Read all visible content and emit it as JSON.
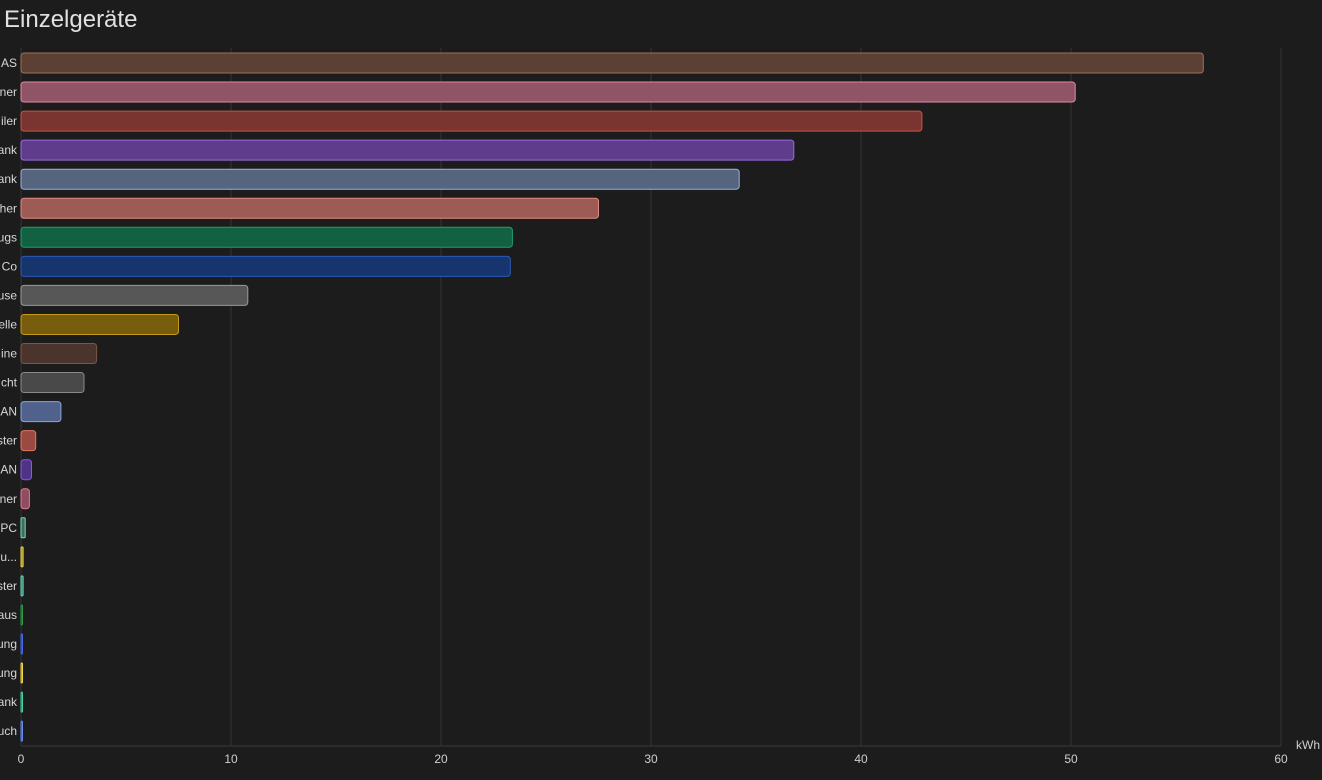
{
  "card": {
    "title": "Einzelgeräte"
  },
  "chart_data": {
    "type": "bar",
    "orientation": "horizontal",
    "title": "Einzelgeräte",
    "xunit": "kWh",
    "xlim": [
      0,
      60
    ],
    "xticks": [
      0,
      10,
      20,
      30,
      40,
      50,
      60
    ],
    "grid": true,
    "legend": "none",
    "categories": [
      "AS",
      "ner",
      "iler",
      "ank",
      "ank",
      "her",
      "ugs",
      "Co",
      "use",
      "elle",
      "ine",
      "cht",
      "AN",
      "ster",
      "AN",
      "ner",
      "PC",
      "u...",
      "ster",
      "aus",
      "ung",
      "ung",
      "ank",
      "uch"
    ],
    "values": [
      56.3,
      50.2,
      42.9,
      36.8,
      34.2,
      27.5,
      23.4,
      23.3,
      10.8,
      7.5,
      3.6,
      3.0,
      1.9,
      0.7,
      0.5,
      0.4,
      0.2,
      0.1,
      0.1,
      0.05,
      0.05,
      0.05,
      0.05,
      0.05
    ],
    "colors": [
      "#5c4033",
      "#8f5466",
      "#7a3530",
      "#603d8c",
      "#56657e",
      "#9c5b54",
      "#126142",
      "#16346e",
      "#575757",
      "#785e0c",
      "#4b342c",
      "#494949",
      "#50628c",
      "#9a4a40",
      "#4e3386",
      "#8f4d5f",
      "#3b6e5c",
      "#9a8a22",
      "#3b7766",
      "#1f5a2a",
      "#2a3f8f",
      "#9c8a24",
      "#2d6e5e",
      "#3a4f99"
    ],
    "strokes": [
      "#a0705a",
      "#e68aa5",
      "#c55448",
      "#9a6ae0",
      "#9ab4de",
      "#e08c80",
      "#1fa06c",
      "#2a5ab8",
      "#9a9a9a",
      "#c49a1a",
      "#7c5648",
      "#8a8a8a",
      "#8aa4e0",
      "#e07868",
      "#8a5ae6",
      "#e07a96",
      "#7ad8b6",
      "#f0d448",
      "#6adcbc",
      "#2a9a48",
      "#4a6ae8",
      "#f0d448",
      "#4ad0a8",
      "#6a8aee"
    ]
  }
}
